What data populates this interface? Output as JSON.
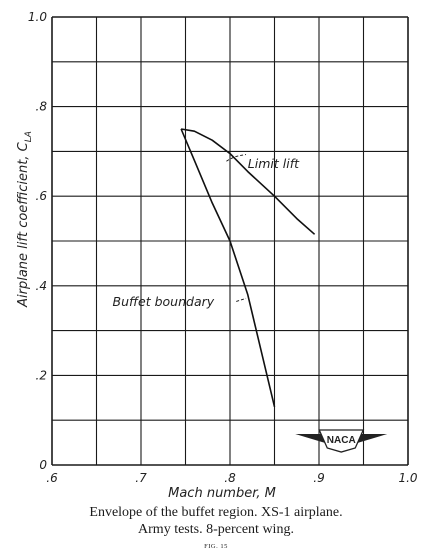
{
  "chart_data": {
    "type": "line",
    "xlabel": "Mach number, M",
    "ylabel": "Airplane lift coefficient, C",
    "ylabel_subscript": "LA",
    "xlim": [
      0.6,
      1.0
    ],
    "ylim": [
      0,
      1.0
    ],
    "x_tick_labels": [
      ".6",
      ".7",
      ".8",
      ".9",
      "1.0"
    ],
    "y_tick_labels": [
      "0",
      ".2",
      ".4",
      ".6",
      ".8",
      "1.0"
    ],
    "x_ticks": [
      0.6,
      0.7,
      0.8,
      0.9,
      1.0
    ],
    "y_ticks": [
      0,
      0.2,
      0.4,
      0.6,
      0.8,
      1.0
    ],
    "grid": true,
    "grid_step": {
      "x": 0.05,
      "y": 0.1
    },
    "series": [
      {
        "name": "Limit lift",
        "x": [
          0.745,
          0.76,
          0.78,
          0.8,
          0.82,
          0.85,
          0.875,
          0.895
        ],
        "y": [
          0.75,
          0.745,
          0.725,
          0.695,
          0.655,
          0.6,
          0.55,
          0.515
        ]
      },
      {
        "name": "Buffet boundary",
        "x": [
          0.745,
          0.76,
          0.78,
          0.8,
          0.82,
          0.85
        ],
        "y": [
          0.75,
          0.68,
          0.585,
          0.5,
          0.38,
          0.13
        ]
      }
    ],
    "annotations": [
      {
        "text": "Limit lift",
        "series": "Limit lift"
      },
      {
        "text": "Buffet boundary",
        "series": "Buffet boundary"
      }
    ],
    "logo": "NACA"
  },
  "caption": {
    "line1": "Envelope of the buffet region.  XS-1 airplane.",
    "line2": "Army tests.  8-percent wing.",
    "fig": "FIG. 15"
  }
}
